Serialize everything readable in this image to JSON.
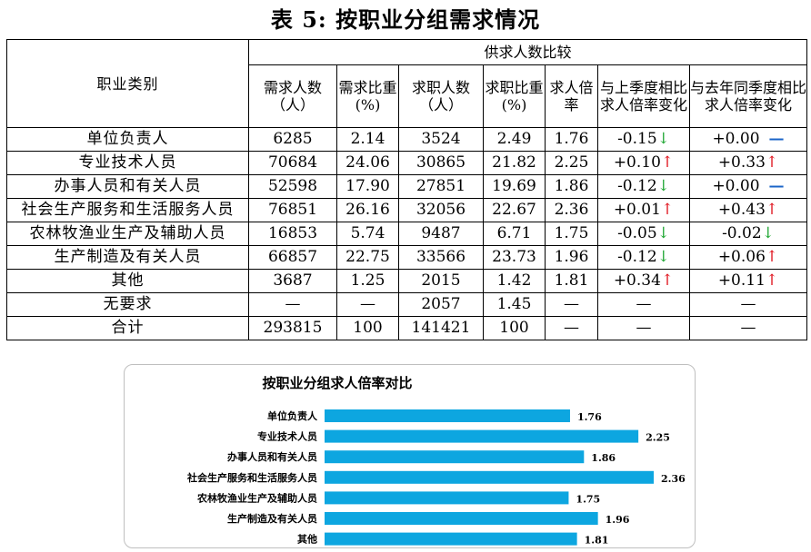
{
  "title": "表 5:  按职业分组需求情况",
  "table": {
    "col_category": "职业类别",
    "group_header": "供求人数比较",
    "columns": {
      "demand_count": "需求人数（人）",
      "demand_share": "需求比重(%)",
      "seeker_count": "求职人数（人）",
      "seeker_share": "求职比重(%)",
      "ratio": "求人倍率",
      "qoq": "与上季度相比求人倍率变化",
      "yoy": "与去年同季度相比求人倍率变化"
    },
    "rows": [
      {
        "name": "单位负责人",
        "demand": "6285",
        "dshare": "2.14",
        "seekers": "3524",
        "sshare": "2.49",
        "ratio": "1.76",
        "qoq": "-0.15",
        "qoq_dir": "down",
        "yoy": "+0.00",
        "yoy_dir": "flat"
      },
      {
        "name": "专业技术人员",
        "demand": "70684",
        "dshare": "24.06",
        "seekers": "30865",
        "sshare": "21.82",
        "ratio": "2.25",
        "qoq": "+0.10",
        "qoq_dir": "up",
        "yoy": "+0.33",
        "yoy_dir": "up"
      },
      {
        "name": "办事人员和有关人员",
        "demand": "52598",
        "dshare": "17.90",
        "seekers": "27851",
        "sshare": "19.69",
        "ratio": "1.86",
        "qoq": "-0.12",
        "qoq_dir": "down",
        "yoy": "+0.00",
        "yoy_dir": "flat"
      },
      {
        "name": "社会生产服务和生活服务人员",
        "demand": "76851",
        "dshare": "26.16",
        "seekers": "32056",
        "sshare": "22.67",
        "ratio": "2.36",
        "qoq": "+0.01",
        "qoq_dir": "up",
        "yoy": "+0.43",
        "yoy_dir": "up"
      },
      {
        "name": "农林牧渔业生产及辅助人员",
        "demand": "16853",
        "dshare": "5.74",
        "seekers": "9487",
        "sshare": "6.71",
        "ratio": "1.75",
        "qoq": "-0.05",
        "qoq_dir": "down",
        "yoy": "-0.02",
        "yoy_dir": "down"
      },
      {
        "name": "生产制造及有关人员",
        "demand": "66857",
        "dshare": "22.75",
        "seekers": "33566",
        "sshare": "23.73",
        "ratio": "1.96",
        "qoq": "-0.12",
        "qoq_dir": "down",
        "yoy": "+0.06",
        "yoy_dir": "up"
      },
      {
        "name": "其他",
        "demand": "3687",
        "dshare": "1.25",
        "seekers": "2015",
        "sshare": "1.42",
        "ratio": "1.81",
        "qoq": "+0.34",
        "qoq_dir": "up",
        "yoy": "+0.11",
        "yoy_dir": "up"
      },
      {
        "name": "无要求",
        "demand": "—",
        "dshare": "—",
        "seekers": "2057",
        "sshare": "1.45",
        "ratio": "—",
        "qoq": "—",
        "qoq_dir": "none",
        "yoy": "—",
        "yoy_dir": "none"
      },
      {
        "name": "合计",
        "demand": "293815",
        "dshare": "100",
        "seekers": "141421",
        "sshare": "100",
        "ratio": "—",
        "qoq": "—",
        "qoq_dir": "none",
        "yoy": "—",
        "yoy_dir": "none"
      }
    ],
    "arrows": {
      "up": "↑",
      "down": "↓",
      "flat": "—",
      "none": ""
    }
  },
  "colors": {
    "up": "#e0141e",
    "down": "#23a836",
    "flat": "#1a64c8",
    "bar": "#0da6e0"
  },
  "chart_data": {
    "type": "bar",
    "orientation": "horizontal",
    "title": "按职业分组求人倍率对比",
    "categories": [
      "单位负责人",
      "专业技术人员",
      "办事人员和有关人员",
      "社会生产服务和生活服务人员",
      "农林牧渔业生产及辅助人员",
      "生产制造及有关人员",
      "其他"
    ],
    "values": [
      1.76,
      2.25,
      1.86,
      2.36,
      1.75,
      1.96,
      1.81
    ],
    "xlabel": "",
    "ylabel": "",
    "xlim": [
      0,
      2.5
    ],
    "grid": false,
    "legend": "none"
  }
}
